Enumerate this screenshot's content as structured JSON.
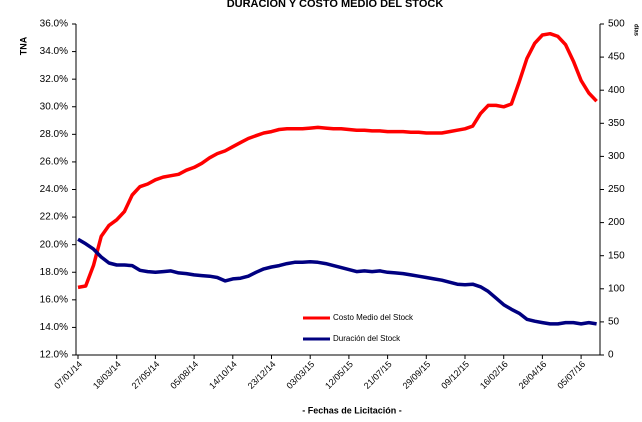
{
  "chart_data": {
    "type": "line",
    "title": "DURACIÓN Y COSTO MEDIO DEL STOCK",
    "x_label": "- Fechas de Licitación -",
    "y_label": "TNA",
    "y2_label": "días",
    "categories": [
      "07/01/14",
      null,
      null,
      null,
      null,
      "18/03/14",
      null,
      null,
      null,
      null,
      "27/05/14",
      null,
      null,
      null,
      null,
      "05/08/14",
      null,
      null,
      null,
      null,
      "14/10/14",
      null,
      null,
      null,
      null,
      "23/12/14",
      null,
      null,
      null,
      null,
      "03/03/15",
      null,
      null,
      null,
      null,
      "12/05/15",
      null,
      null,
      null,
      null,
      "21/07/15",
      null,
      null,
      null,
      null,
      "29/09/15",
      null,
      null,
      null,
      null,
      "09/12/15",
      null,
      null,
      null,
      null,
      "16/02/16",
      null,
      null,
      null,
      null,
      "26/04/16",
      null,
      null,
      null,
      null,
      "05/07/16",
      null,
      null
    ],
    "series": [
      {
        "name": "Costo Medio del Stock",
        "color": "#ff0000",
        "axis": "y",
        "values": [
          16.9,
          17.0,
          18.5,
          20.6,
          21.4,
          21.8,
          22.4,
          23.6,
          24.2,
          24.4,
          24.7,
          24.9,
          25.0,
          25.1,
          25.4,
          25.6,
          25.9,
          26.3,
          26.6,
          26.8,
          27.1,
          27.4,
          27.7,
          27.9,
          28.1,
          28.2,
          28.35,
          28.4,
          28.4,
          28.4,
          28.45,
          28.5,
          28.45,
          28.4,
          28.4,
          28.35,
          28.3,
          28.3,
          28.25,
          28.25,
          28.2,
          28.2,
          28.2,
          28.15,
          28.15,
          28.1,
          28.1,
          28.1,
          28.2,
          28.3,
          28.4,
          28.6,
          29.5,
          30.1,
          30.1,
          30.0,
          30.2,
          31.8,
          33.5,
          34.6,
          35.2,
          35.3,
          35.1,
          34.5,
          33.3,
          31.9,
          31.0,
          30.4
        ]
      },
      {
        "name": "Duración del Stock",
        "color": "#000080",
        "axis": "y2",
        "values": [
          175,
          168,
          160,
          148,
          139,
          136,
          136,
          135,
          128,
          126,
          125,
          126,
          127,
          124,
          123,
          121,
          120,
          119,
          117,
          112,
          115,
          116,
          119,
          125,
          130,
          133,
          135,
          138,
          140,
          140,
          141,
          140,
          138,
          135,
          132,
          129,
          126,
          127,
          126,
          127,
          125,
          124,
          123,
          121,
          119,
          117,
          115,
          113,
          110,
          107,
          106,
          107,
          103,
          96,
          86,
          76,
          69,
          63,
          54,
          51,
          49,
          47,
          47,
          49,
          49,
          47,
          49,
          47
        ]
      }
    ],
    "ylim": [
      12,
      36
    ],
    "yticks": [
      {
        "value": 12,
        "label": "12.0%"
      },
      {
        "value": 14,
        "label": "14.0%"
      },
      {
        "value": 16,
        "label": "16.0%"
      },
      {
        "value": 18,
        "label": "18.0%"
      },
      {
        "value": 20,
        "label": "20.0%"
      },
      {
        "value": 22,
        "label": "22.0%"
      },
      {
        "value": 24,
        "label": "24.0%"
      },
      {
        "value": 26,
        "label": "26.0%"
      },
      {
        "value": 28,
        "label": "28.0%"
      },
      {
        "value": 30,
        "label": "30.0%"
      },
      {
        "value": 32,
        "label": "32.0%"
      },
      {
        "value": 34,
        "label": "34.0%"
      },
      {
        "value": 36,
        "label": "36.0%"
      }
    ],
    "y2lim": [
      0,
      500
    ],
    "y2ticks": [
      0,
      50,
      100,
      150,
      200,
      250,
      300,
      350,
      400,
      450,
      500
    ],
    "grid": false
  }
}
